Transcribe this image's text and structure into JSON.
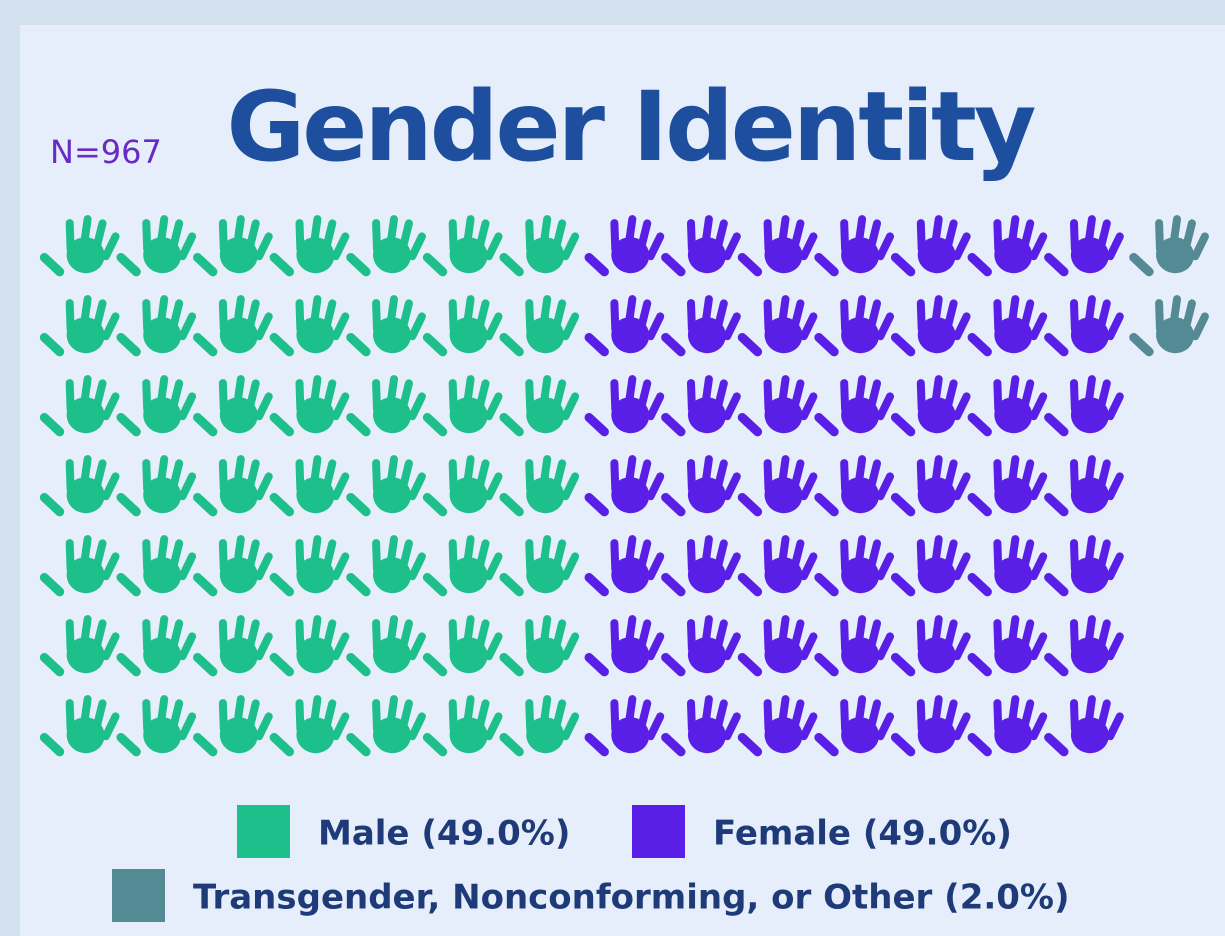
{
  "chart_data": {
    "type": "waffle",
    "title": "Gender Identity",
    "annotation": "N=967",
    "rows": 7,
    "series": [
      {
        "name": "Male (49.0%)",
        "color": "#1dbf8a",
        "values": [
          49
        ]
      },
      {
        "name": "Female (49.0%)",
        "color": "#5a1fe6",
        "values": [
          49
        ]
      },
      {
        "name": "Transgender, Nonconforming, or Other (2.0%)",
        "color": "#548a93",
        "values": [
          2
        ]
      }
    ]
  }
}
